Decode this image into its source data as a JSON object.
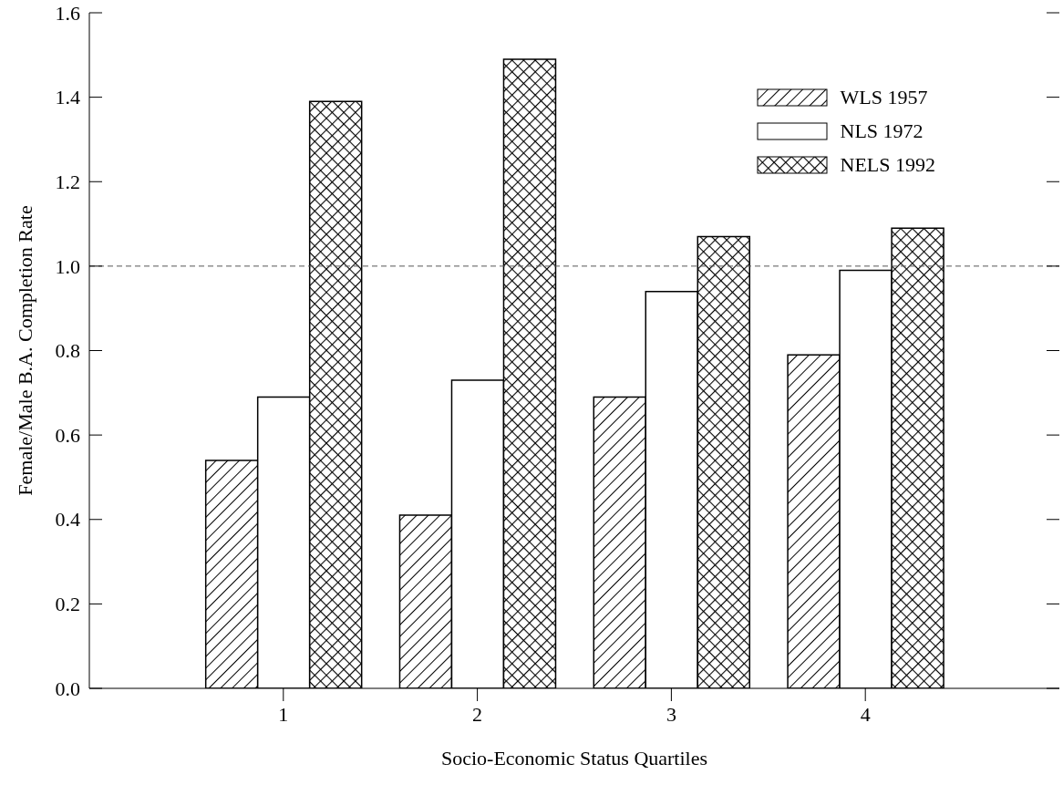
{
  "chart_data": {
    "type": "bar",
    "xlabel": "Socio-Economic Status Quartiles",
    "ylabel": "Female/Male B.A. Completion Rate",
    "categories": [
      "1",
      "2",
      "3",
      "4"
    ],
    "series": [
      {
        "name": "WLS 1957",
        "color": "#000000",
        "values": [
          0.54,
          0.41,
          0.69,
          0.79
        ]
      },
      {
        "name": "NLS 1972",
        "color": "#ffffff",
        "values": [
          0.69,
          0.73,
          0.94,
          0.99
        ]
      },
      {
        "name": "NELS 1992",
        "color": "#000000",
        "values": [
          1.39,
          1.49,
          1.07,
          1.09
        ]
      }
    ],
    "ylim": [
      0,
      1.6
    ],
    "yticks": [
      {
        "value": 0,
        "label": "0.0"
      },
      {
        "value": 0.2,
        "label": "0.2"
      },
      {
        "value": 0.4,
        "label": "0.4"
      },
      {
        "value": 0.6,
        "label": "0.6"
      },
      {
        "value": 0.8,
        "label": "0.8"
      },
      {
        "value": 1,
        "label": "1.0"
      },
      {
        "value": 1.2,
        "label": "1.2"
      },
      {
        "value": 1.4,
        "label": "1.4"
      },
      {
        "value": 1.6,
        "label": "1.6"
      }
    ],
    "ref_lines": [
      {
        "axis": "y",
        "value": 1,
        "color": "#555555",
        "line_style": "dashed"
      }
    ],
    "grid": false,
    "legend": "top right"
  }
}
